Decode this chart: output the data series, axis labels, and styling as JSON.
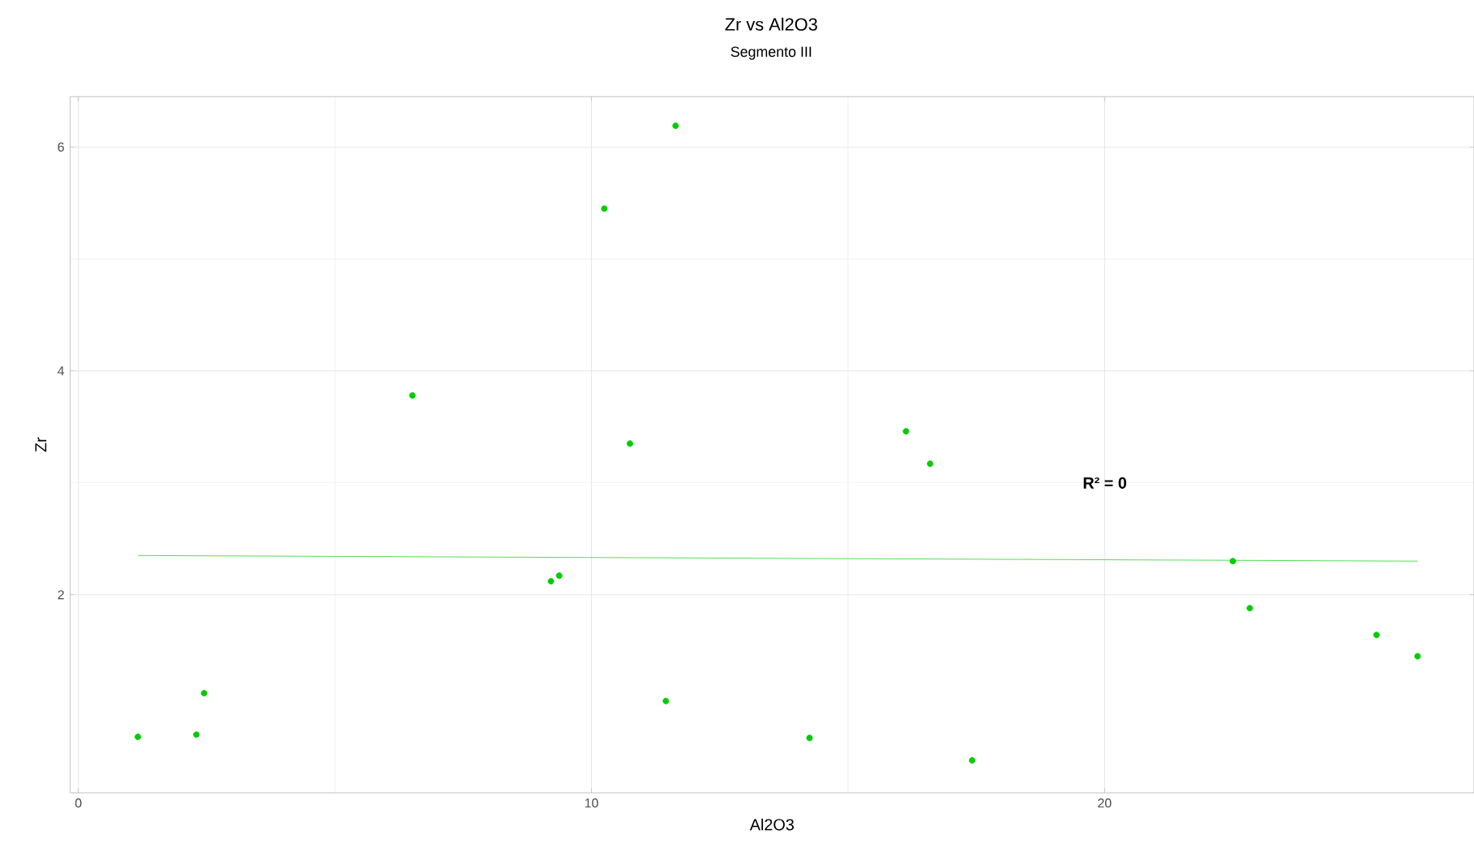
{
  "chart_data": {
    "type": "scatter",
    "title": "Zr vs Al2O3",
    "subtitle": "Segmento III",
    "xlabel": "Al2O3",
    "ylabel": "Zr",
    "series": [
      {
        "color": "#00cc00",
        "marker": "circle",
        "x": [
          1.16,
          2.3,
          2.45,
          6.51,
          9.21,
          9.37,
          10.25,
          10.75,
          11.45,
          11.64,
          14.25,
          16.13,
          16.6,
          17.42,
          22.5,
          22.83,
          25.3,
          26.1
        ],
        "values": [
          0.73,
          0.75,
          1.12,
          3.78,
          2.12,
          2.17,
          5.45,
          3.35,
          1.05,
          6.19,
          0.72,
          3.46,
          3.17,
          0.52,
          2.3,
          1.88,
          1.64,
          1.45
        ]
      },
      {
        "type": "line",
        "color": "#55dd55",
        "x": [
          1.16,
          26.1
        ],
        "values": [
          2.35,
          2.3
        ]
      }
    ],
    "xlim": [
      -0.16,
      27.2
    ],
    "ylim": [
      0.23,
      6.45
    ],
    "xticks": [
      0,
      10,
      20
    ],
    "yticks": [
      2,
      4,
      6
    ],
    "grid": true,
    "annotations": [
      "R² = 0"
    ]
  }
}
